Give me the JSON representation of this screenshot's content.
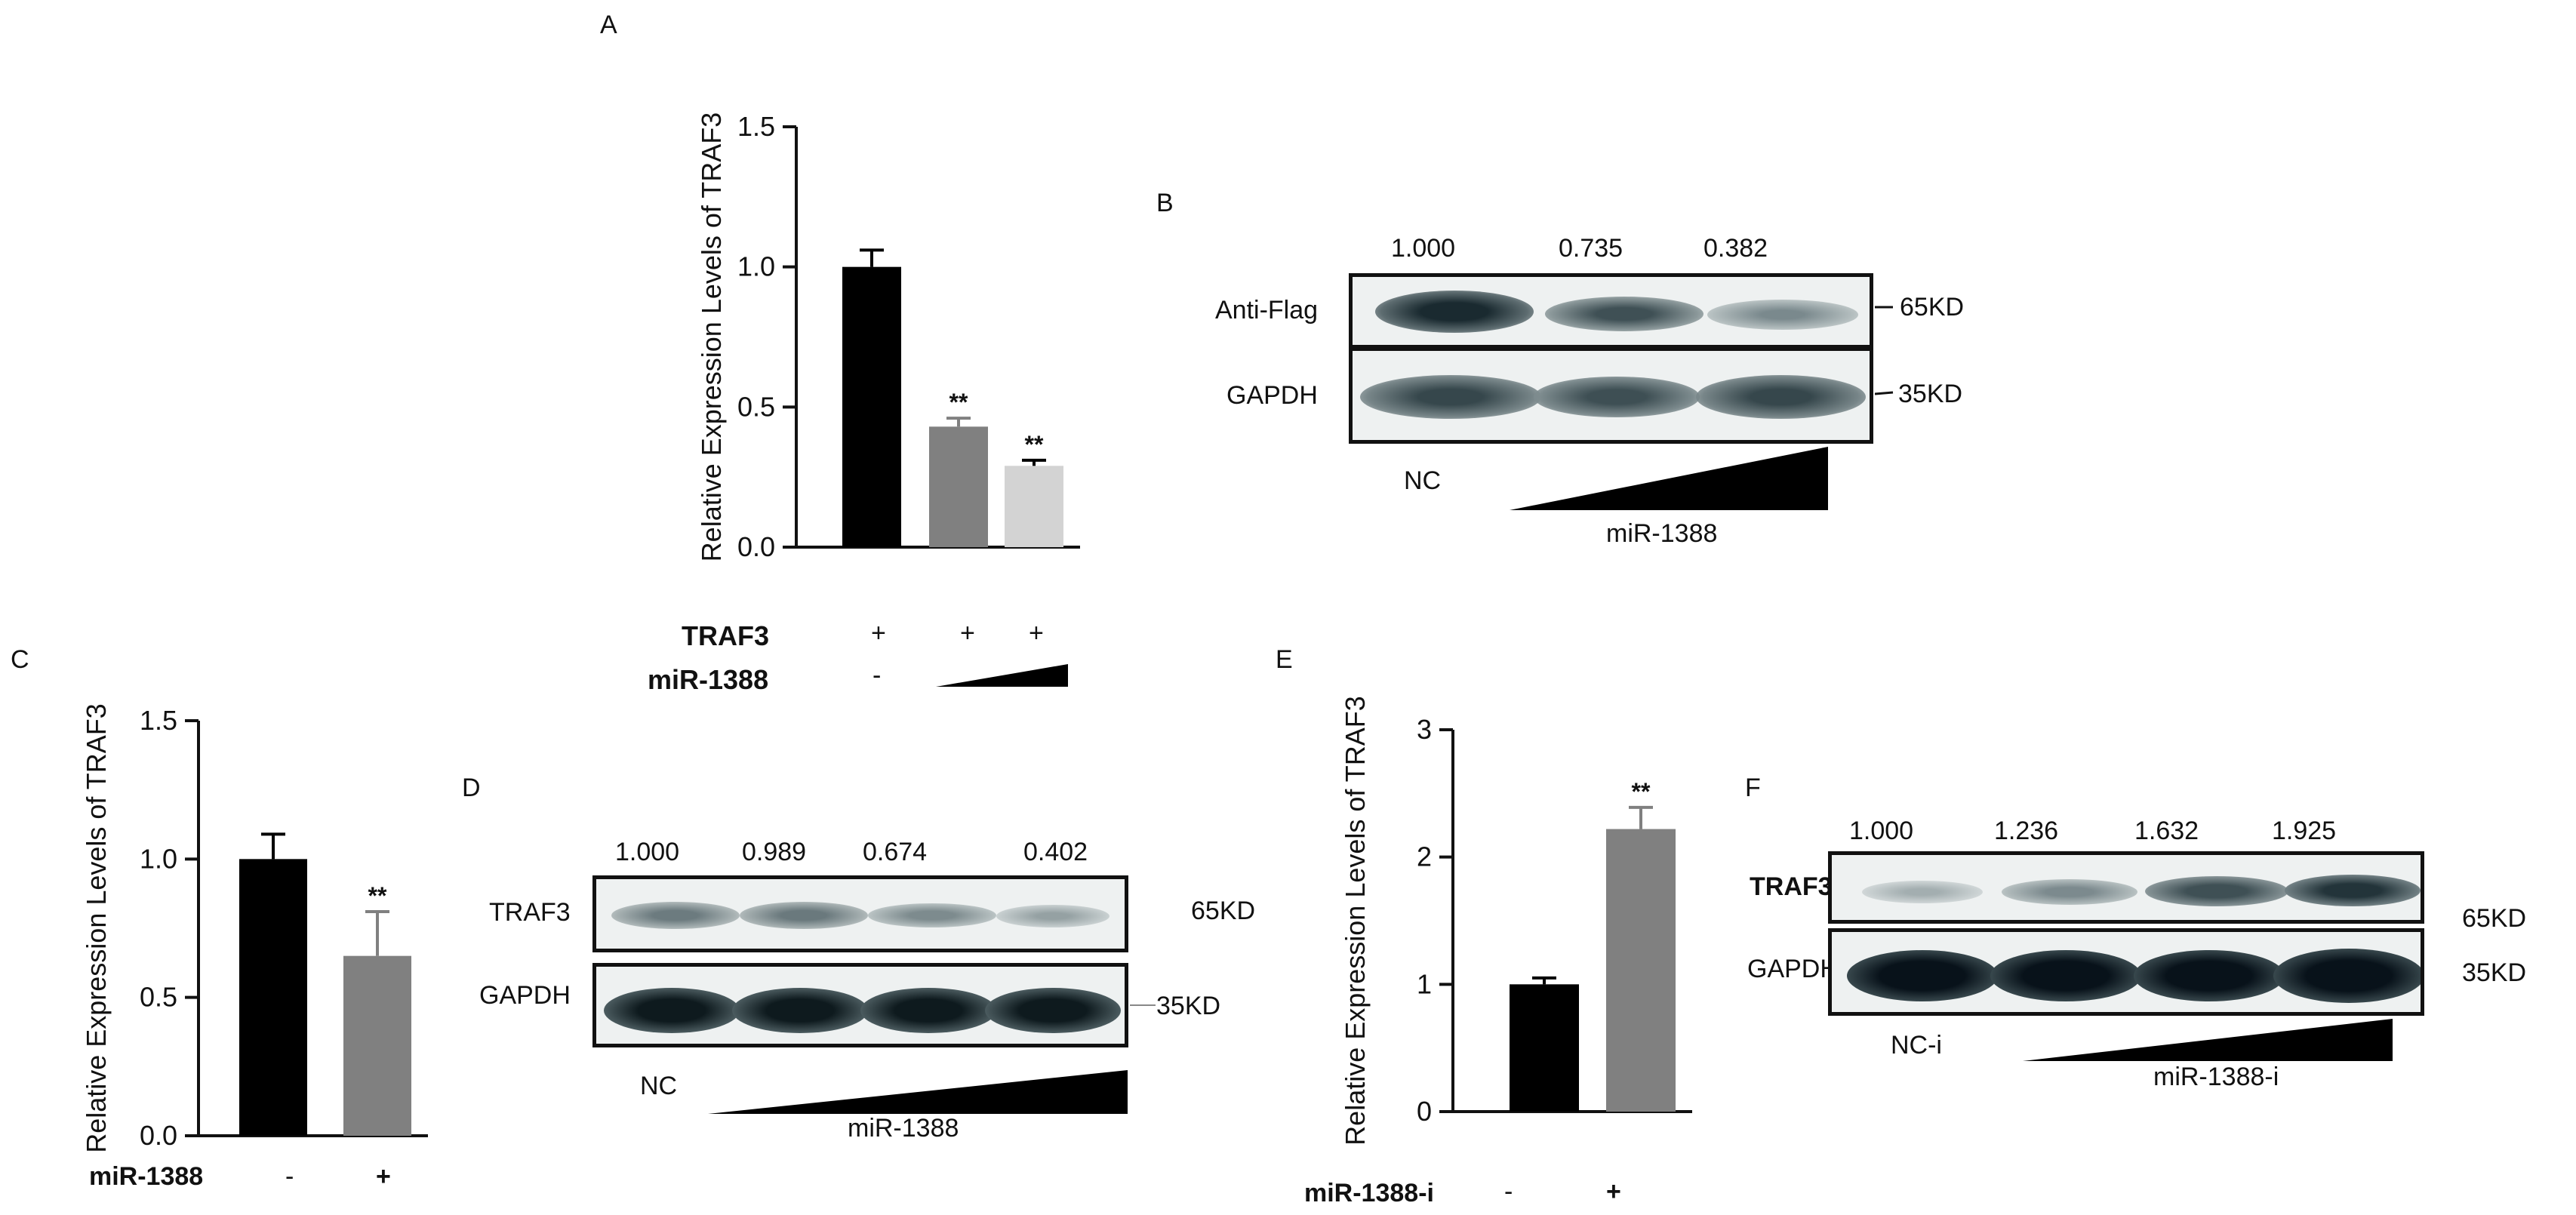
{
  "panels": {
    "A": "A",
    "B": "B",
    "C": "C",
    "D": "D",
    "E": "E",
    "F": "F"
  },
  "chart_data": [
    {
      "id": "A",
      "type": "bar",
      "ylabel": "Relative Expression Levels of TRAF3",
      "ylim": [
        0,
        1.5
      ],
      "yticks": [
        "0.0",
        "0.5",
        "1.0",
        "1.5"
      ],
      "values": [
        1.0,
        0.43,
        0.29
      ],
      "errors": [
        0.06,
        0.03,
        0.02
      ],
      "significance": [
        "",
        "**",
        "**"
      ],
      "colors": [
        "#000000",
        "#808080",
        "#d3d3d3"
      ],
      "conditions": [
        {
          "label": "TRAF3",
          "marks": [
            "+",
            "+",
            "+"
          ]
        },
        {
          "label": "miR-1388",
          "marks": [
            "-",
            "",
            ""
          ]
        }
      ]
    },
    {
      "id": "C",
      "type": "bar",
      "ylabel": "Relative Expression Levels of TRAF3",
      "ylim": [
        0,
        1.5
      ],
      "yticks": [
        "0.0",
        "0.5",
        "1.0",
        "1.5"
      ],
      "values": [
        1.0,
        0.65
      ],
      "errors": [
        0.09,
        0.16
      ],
      "significance": [
        "",
        "**"
      ],
      "colors": [
        "#000000",
        "#808080"
      ],
      "conditions": [
        {
          "label": "miR-1388",
          "marks": [
            "-",
            "+"
          ]
        }
      ]
    },
    {
      "id": "E",
      "type": "bar",
      "ylabel": "Relative Expression Levels of TRAF3",
      "ylim": [
        0,
        3
      ],
      "yticks": [
        "0",
        "1",
        "2",
        "3"
      ],
      "values": [
        1.0,
        2.22
      ],
      "errors": [
        0.05,
        0.17
      ],
      "significance": [
        "",
        "**"
      ],
      "colors": [
        "#000000",
        "#808080"
      ],
      "conditions": [
        {
          "label": "miR-1388-i",
          "marks": [
            "-",
            "+"
          ]
        }
      ]
    }
  ],
  "blots": {
    "B": {
      "quant": [
        "1.000",
        "0.735",
        "0.382"
      ],
      "row1_label": "Anti-Flag",
      "row2_label": "GAPDH",
      "kd1": "65KD",
      "kd2": "35KD",
      "control": "NC",
      "treatment": "miR-1388"
    },
    "D": {
      "quant": [
        "1.000",
        "0.989",
        "0.674",
        "0.402"
      ],
      "row1_label": "TRAF3",
      "row2_label": "GAPDH",
      "kd1": "65KD",
      "kd2": "35KD",
      "control": "NC",
      "treatment": "miR-1388"
    },
    "F": {
      "quant": [
        "1.000",
        "1.236",
        "1.632",
        "1.925"
      ],
      "row1_label": "TRAF3",
      "row2_label": "GAPDH",
      "kd1": "65KD",
      "kd2": "35KD",
      "control": "NC-i",
      "treatment": "miR-1388-i"
    }
  }
}
